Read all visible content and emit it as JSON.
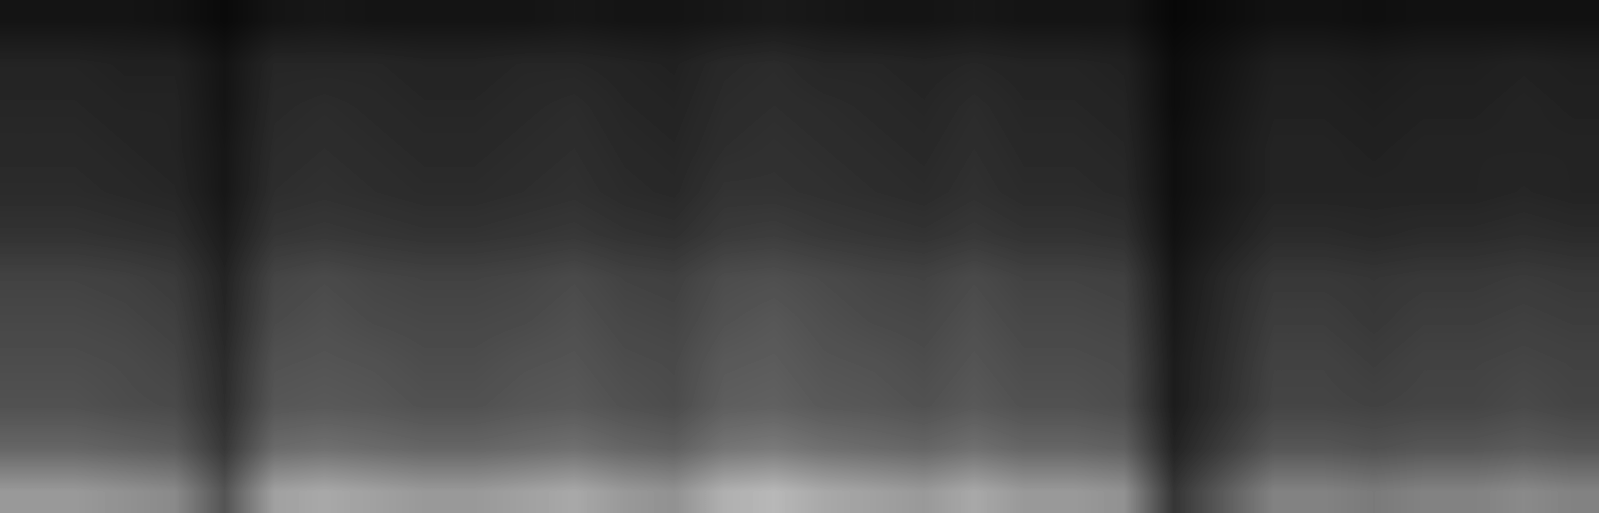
{
  "chart_data": {
    "type": "heatmap",
    "color": "gray",
    "tick_labels": false,
    "zlim": [
      0,
      1
    ],
    "cells": [
      [
        0.08,
        0.08,
        0.08,
        0.07,
        0.04,
        0.08,
        0.09,
        0.08,
        0.08,
        0.08,
        0.08,
        0.09,
        0.08,
        0.08,
        0.09,
        0.1,
        0.09,
        0.08,
        0.08,
        0.09,
        0.08,
        0.08,
        0.08,
        0.03,
        0.05,
        0.07,
        0.07,
        0.06,
        0.07,
        0.07,
        0.07,
        0.07
      ],
      [
        0.14,
        0.14,
        0.13,
        0.13,
        0.08,
        0.15,
        0.15,
        0.15,
        0.14,
        0.14,
        0.15,
        0.15,
        0.14,
        0.13,
        0.16,
        0.17,
        0.15,
        0.15,
        0.14,
        0.15,
        0.14,
        0.14,
        0.13,
        0.05,
        0.08,
        0.12,
        0.12,
        0.11,
        0.12,
        0.12,
        0.13,
        0.12
      ],
      [
        0.15,
        0.15,
        0.14,
        0.14,
        0.08,
        0.16,
        0.17,
        0.16,
        0.15,
        0.15,
        0.16,
        0.17,
        0.15,
        0.14,
        0.17,
        0.18,
        0.17,
        0.16,
        0.15,
        0.17,
        0.15,
        0.15,
        0.14,
        0.05,
        0.09,
        0.13,
        0.13,
        0.12,
        0.13,
        0.13,
        0.14,
        0.13
      ],
      [
        0.16,
        0.16,
        0.15,
        0.14,
        0.09,
        0.17,
        0.18,
        0.17,
        0.16,
        0.16,
        0.17,
        0.18,
        0.16,
        0.15,
        0.18,
        0.19,
        0.18,
        0.17,
        0.16,
        0.18,
        0.16,
        0.16,
        0.15,
        0.06,
        0.1,
        0.14,
        0.14,
        0.13,
        0.14,
        0.14,
        0.14,
        0.14
      ],
      [
        0.17,
        0.17,
        0.16,
        0.15,
        0.09,
        0.18,
        0.19,
        0.18,
        0.17,
        0.17,
        0.18,
        0.19,
        0.17,
        0.16,
        0.2,
        0.2,
        0.19,
        0.18,
        0.17,
        0.19,
        0.17,
        0.17,
        0.16,
        0.06,
        0.1,
        0.14,
        0.14,
        0.14,
        0.14,
        0.14,
        0.15,
        0.14
      ],
      [
        0.2,
        0.2,
        0.19,
        0.18,
        0.11,
        0.21,
        0.22,
        0.21,
        0.2,
        0.2,
        0.21,
        0.22,
        0.2,
        0.19,
        0.23,
        0.24,
        0.22,
        0.21,
        0.2,
        0.22,
        0.2,
        0.2,
        0.19,
        0.07,
        0.12,
        0.17,
        0.17,
        0.16,
        0.17,
        0.17,
        0.18,
        0.17
      ],
      [
        0.26,
        0.26,
        0.25,
        0.23,
        0.14,
        0.27,
        0.29,
        0.27,
        0.26,
        0.26,
        0.27,
        0.29,
        0.26,
        0.25,
        0.3,
        0.31,
        0.29,
        0.27,
        0.26,
        0.29,
        0.26,
        0.26,
        0.25,
        0.09,
        0.16,
        0.22,
        0.22,
        0.21,
        0.22,
        0.22,
        0.23,
        0.22
      ],
      [
        0.28,
        0.28,
        0.27,
        0.25,
        0.15,
        0.29,
        0.31,
        0.29,
        0.28,
        0.28,
        0.29,
        0.31,
        0.28,
        0.27,
        0.32,
        0.34,
        0.31,
        0.29,
        0.28,
        0.31,
        0.28,
        0.28,
        0.27,
        0.1,
        0.17,
        0.24,
        0.24,
        0.22,
        0.24,
        0.24,
        0.25,
        0.24
      ],
      [
        0.3,
        0.3,
        0.29,
        0.27,
        0.17,
        0.32,
        0.33,
        0.32,
        0.3,
        0.3,
        0.32,
        0.33,
        0.3,
        0.29,
        0.35,
        0.36,
        0.33,
        0.32,
        0.3,
        0.33,
        0.3,
        0.3,
        0.29,
        0.11,
        0.18,
        0.26,
        0.26,
        0.24,
        0.26,
        0.26,
        0.27,
        0.26
      ],
      [
        0.32,
        0.32,
        0.3,
        0.29,
        0.18,
        0.34,
        0.35,
        0.34,
        0.32,
        0.32,
        0.34,
        0.35,
        0.32,
        0.3,
        0.37,
        0.38,
        0.35,
        0.34,
        0.32,
        0.35,
        0.32,
        0.32,
        0.3,
        0.11,
        0.19,
        0.27,
        0.27,
        0.26,
        0.27,
        0.27,
        0.29,
        0.27
      ],
      [
        0.4,
        0.4,
        0.38,
        0.36,
        0.22,
        0.42,
        0.44,
        0.42,
        0.4,
        0.4,
        0.42,
        0.44,
        0.4,
        0.38,
        0.46,
        0.48,
        0.44,
        0.42,
        0.4,
        0.44,
        0.4,
        0.4,
        0.38,
        0.14,
        0.24,
        0.34,
        0.34,
        0.32,
        0.34,
        0.34,
        0.36,
        0.34
      ],
      [
        0.6,
        0.6,
        0.57,
        0.54,
        0.33,
        0.63,
        0.66,
        0.63,
        0.6,
        0.6,
        0.63,
        0.66,
        0.6,
        0.57,
        0.69,
        0.72,
        0.66,
        0.63,
        0.6,
        0.66,
        0.6,
        0.6,
        0.57,
        0.21,
        0.36,
        0.51,
        0.51,
        0.48,
        0.51,
        0.51,
        0.54,
        0.51
      ]
    ]
  }
}
